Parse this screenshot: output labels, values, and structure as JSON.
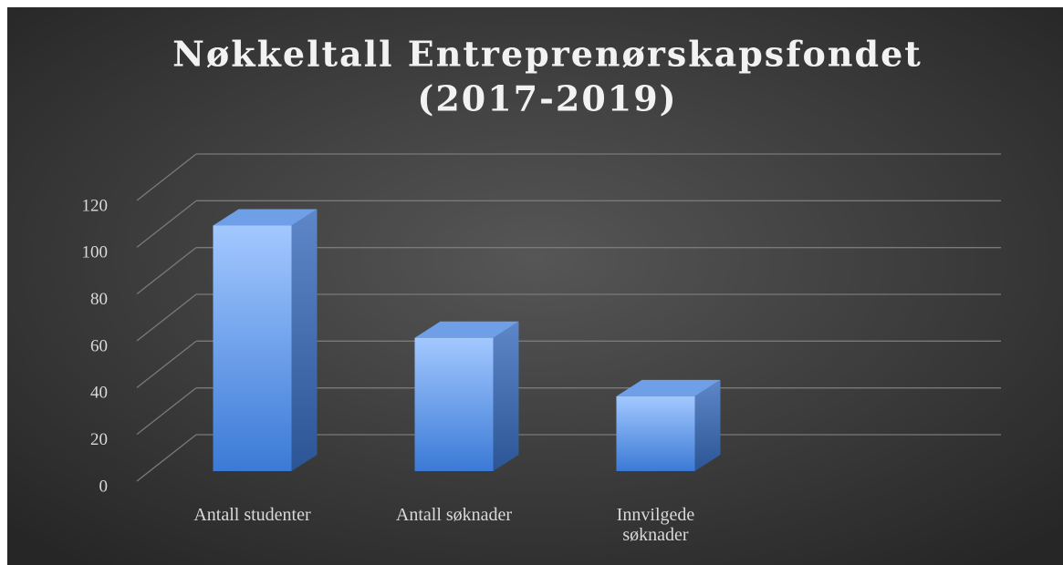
{
  "chart_data": {
    "type": "bar3d",
    "title": "Nøkkeltall Entreprenørskapsfondet (2017-2019)",
    "categories": [
      "Antall studenter",
      "Antall søknader",
      "Innvilgede søknader"
    ],
    "values": [
      105,
      57,
      32
    ],
    "color": "#5b9bd5",
    "ylim": [
      0,
      120
    ],
    "yticks": [
      0,
      20,
      40,
      60,
      80,
      100,
      120
    ],
    "grid": true
  }
}
